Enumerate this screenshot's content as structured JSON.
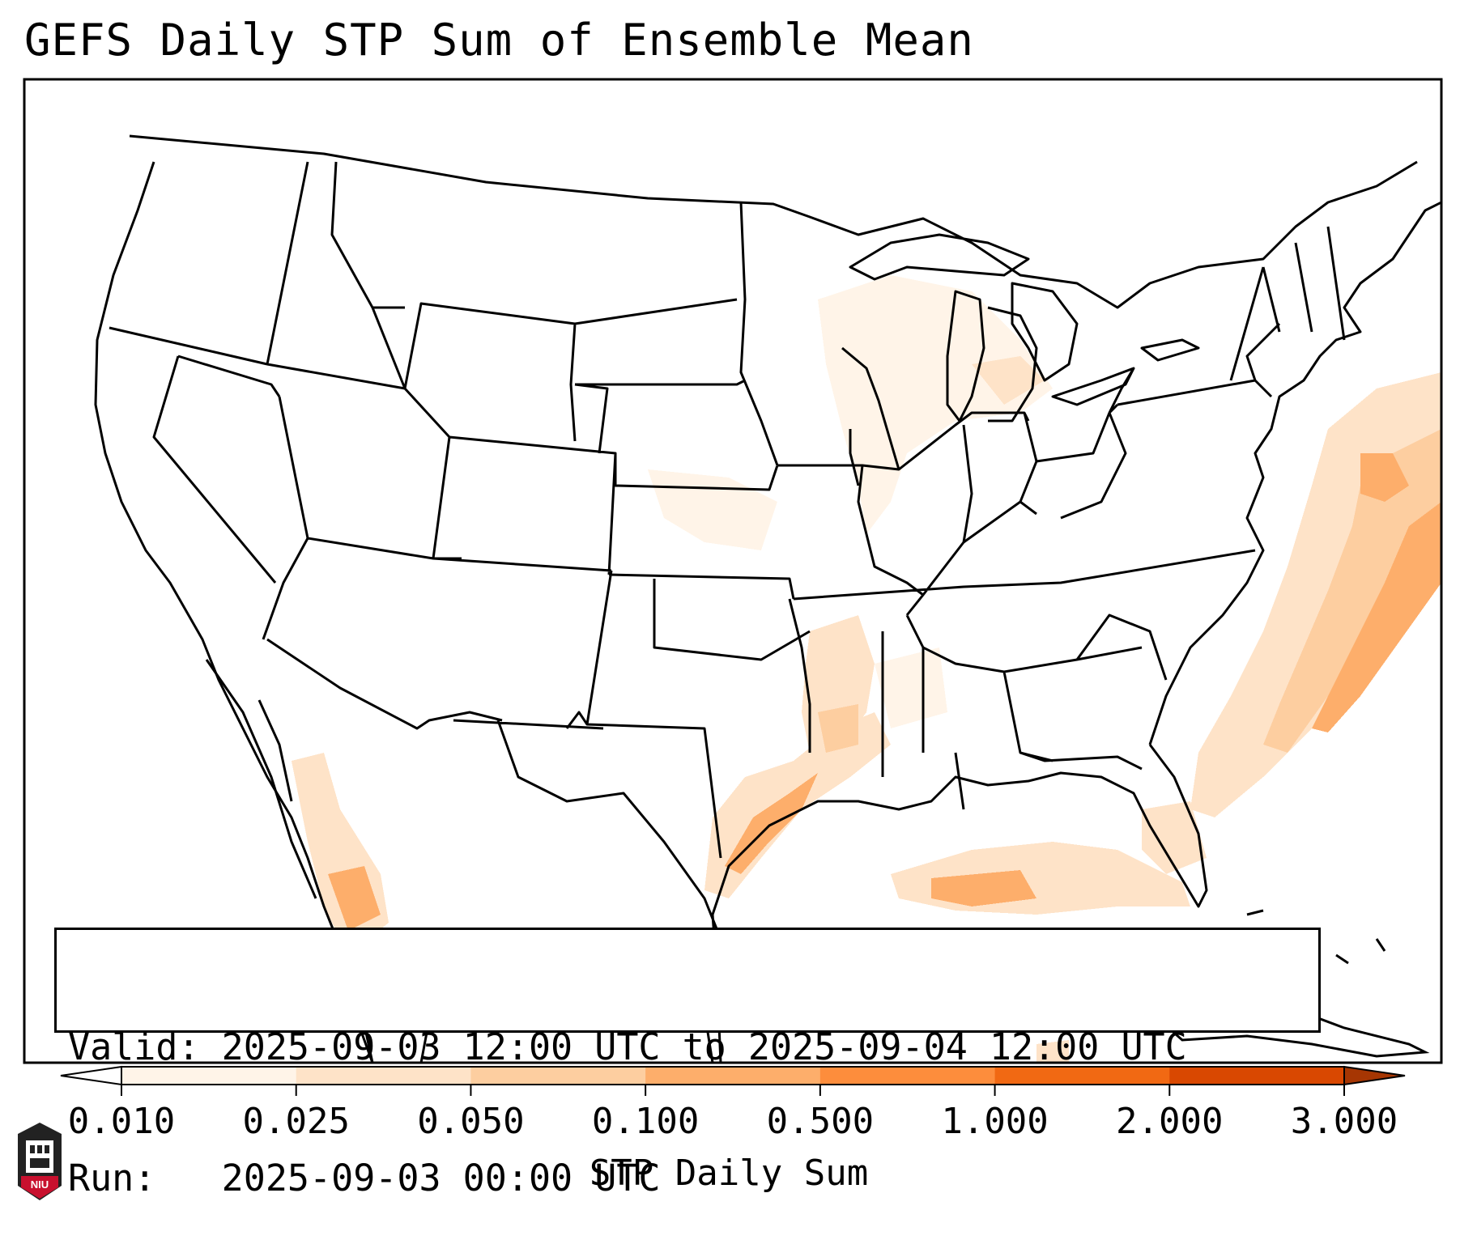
{
  "title": "GEFS Daily STP Sum of Ensemble Mean",
  "info": {
    "valid_label": "Valid:",
    "valid_value": "2025-09-03 12:00 UTC to 2025-09-04 12:00 UTC",
    "run_label": "Run:",
    "run_value": "2025-09-03 00:00 UTC"
  },
  "colorbar": {
    "title": "STP Daily Sum",
    "levels": [
      "0.010",
      "0.025",
      "0.050",
      "0.100",
      "0.500",
      "1.000",
      "2.000",
      "3.000"
    ],
    "colors": [
      "#fff4e8",
      "#fee3c8",
      "#fdcea0",
      "#fdae6b",
      "#fd8d3c",
      "#f16913",
      "#d94801",
      "#a63603"
    ]
  },
  "logo": {
    "text": "NIU",
    "color": "#c8102e"
  },
  "map": {
    "features": [
      "state-borders",
      "coastlines",
      "great-lakes",
      "mexico",
      "cuba"
    ],
    "shaded_regions": [
      {
        "name": "atlantic-offshore-band",
        "level": "0.100"
      },
      {
        "name": "texas-louisiana-coast",
        "level": "0.100"
      },
      {
        "name": "northern-gulf",
        "level": "0.100"
      },
      {
        "name": "lower-mississippi-valley",
        "level": "0.050"
      },
      {
        "name": "upper-midwest-great-lakes",
        "level": "0.025"
      },
      {
        "name": "western-mexico",
        "level": "0.100"
      }
    ]
  }
}
